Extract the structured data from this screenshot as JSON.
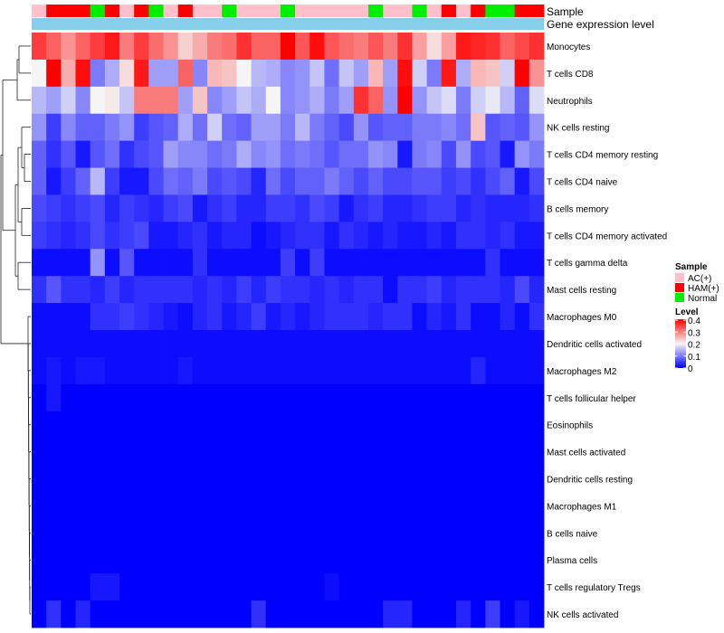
{
  "chart_data": {
    "type": "heatmap",
    "title": "",
    "annotation_tracks": [
      "Sample",
      "Gene expression level"
    ],
    "rows": [
      "Monocytes",
      "T cells CD8",
      "Neutrophils",
      "NK cells resting",
      "T cells CD4 memory resting",
      "T cells CD4 naive",
      "B cells memory",
      "T cells CD4 memory activated",
      "T cells gamma delta",
      "Mast cells resting",
      "Macrophages M0",
      "Dendritic cells activated",
      "Macrophages M2",
      "T cells follicular helper",
      "Eosinophils",
      "Mast cells activated",
      "Dendritic cells resting",
      "Macrophages M1",
      "B cells naive",
      "Plasma cells",
      "T cells regulatory  Tregs",
      "NK cells activated"
    ],
    "sample_groups": [
      "AC(+)",
      "HAM(+)",
      "HAM(+)",
      "HAM(+)",
      "Normal",
      "HAM(+)",
      "AC(+)",
      "HAM(+)",
      "Normal",
      "AC(+)",
      "HAM(+)",
      "AC(+)",
      "AC(+)",
      "Normal",
      "AC(+)",
      "AC(+)",
      "AC(+)",
      "Normal",
      "AC(+)",
      "AC(+)",
      "AC(+)",
      "AC(+)",
      "AC(+)",
      "Normal",
      "AC(+)",
      "AC(+)",
      "Normal",
      "AC(+)",
      "HAM(+)",
      "AC(+)",
      "HAM(+)",
      "Normal",
      "Normal",
      "HAM(+)",
      "HAM(+)"
    ],
    "values": [
      [
        0.35,
        0.32,
        0.28,
        0.32,
        0.35,
        0.38,
        0.3,
        0.35,
        0.31,
        0.28,
        0.23,
        0.26,
        0.3,
        0.31,
        0.36,
        0.32,
        0.32,
        0.4,
        0.33,
        0.39,
        0.33,
        0.31,
        0.3,
        0.33,
        0.3,
        0.36,
        0.27,
        0.22,
        0.27,
        0.38,
        0.37,
        0.36,
        0.32,
        0.34,
        0.36
      ],
      [
        0.2,
        0.4,
        0.26,
        0.39,
        0.1,
        0.14,
        0.22,
        0.38,
        0.13,
        0.13,
        0.32,
        0.11,
        0.25,
        0.24,
        0.2,
        0.15,
        0.14,
        0.11,
        0.12,
        0.16,
        0.09,
        0.16,
        0.13,
        0.25,
        0.13,
        0.39,
        0.17,
        0.1,
        0.38,
        0.14,
        0.25,
        0.24,
        0.17,
        0.4,
        0.28
      ],
      [
        0.15,
        0.13,
        0.17,
        0.11,
        0.2,
        0.21,
        0.16,
        0.3,
        0.3,
        0.3,
        0.13,
        0.24,
        0.11,
        0.13,
        0.16,
        0.14,
        0.2,
        0.11,
        0.12,
        0.14,
        0.1,
        0.13,
        0.36,
        0.32,
        0.12,
        0.4,
        0.12,
        0.16,
        0.18,
        0.1,
        0.17,
        0.19,
        0.15,
        0.08,
        0.18
      ],
      [
        0.12,
        0.05,
        0.11,
        0.08,
        0.08,
        0.1,
        0.12,
        0.05,
        0.07,
        0.08,
        0.14,
        0.09,
        0.17,
        0.09,
        0.08,
        0.13,
        0.13,
        0.1,
        0.15,
        0.1,
        0.08,
        0.06,
        0.12,
        0.07,
        0.08,
        0.08,
        0.1,
        0.1,
        0.11,
        0.09,
        0.24,
        0.07,
        0.08,
        0.07,
        0.12
      ],
      [
        0.08,
        0.04,
        0.07,
        0.02,
        0.07,
        0.09,
        0.04,
        0.06,
        0.07,
        0.13,
        0.11,
        0.11,
        0.09,
        0.1,
        0.14,
        0.11,
        0.12,
        0.09,
        0.1,
        0.09,
        0.07,
        0.09,
        0.09,
        0.12,
        0.11,
        0.02,
        0.1,
        0.11,
        0.06,
        0.12,
        0.06,
        0.07,
        0.02,
        0.12,
        0.1
      ],
      [
        0.08,
        0.02,
        0.05,
        0.08,
        0.15,
        0.05,
        0.02,
        0.02,
        0.06,
        0.09,
        0.08,
        0.1,
        0.06,
        0.07,
        0.06,
        0.03,
        0.09,
        0.06,
        0.08,
        0.08,
        0.1,
        0.08,
        0.06,
        0.08,
        0.06,
        0.06,
        0.07,
        0.07,
        0.05,
        0.06,
        0.04,
        0.06,
        0.08,
        0.02,
        0.06
      ],
      [
        0.06,
        0.05,
        0.04,
        0.05,
        0.06,
        0.03,
        0.05,
        0.04,
        0.03,
        0.05,
        0.06,
        0.02,
        0.04,
        0.05,
        0.03,
        0.03,
        0.05,
        0.05,
        0.04,
        0.06,
        0.05,
        0.02,
        0.04,
        0.05,
        0.03,
        0.03,
        0.04,
        0.05,
        0.05,
        0.03,
        0.04,
        0.03,
        0.03,
        0.03,
        0.04
      ],
      [
        0.05,
        0.04,
        0.03,
        0.04,
        0.06,
        0.04,
        0.05,
        0.06,
        0.02,
        0.02,
        0.03,
        0.04,
        0.02,
        0.03,
        0.03,
        0.01,
        0.02,
        0.03,
        0.04,
        0.04,
        0.02,
        0.04,
        0.03,
        0.02,
        0.03,
        0.02,
        0.02,
        0.03,
        0.02,
        0.04,
        0.04,
        0.03,
        0.04,
        0.02,
        0.02
      ],
      [
        0.01,
        0.01,
        0.01,
        0.01,
        0.12,
        0.01,
        0.07,
        0.01,
        0.01,
        0.01,
        0.01,
        0.04,
        0.01,
        0.01,
        0.01,
        0.01,
        0.01,
        0.05,
        0.01,
        0.05,
        0.01,
        0.01,
        0.01,
        0.01,
        0.01,
        0.01,
        0.01,
        0.01,
        0.01,
        0.01,
        0.01,
        0.04,
        0.01,
        0.01,
        0.01
      ],
      [
        0.04,
        0.07,
        0.04,
        0.04,
        0.03,
        0.05,
        0.03,
        0.04,
        0.04,
        0.04,
        0.04,
        0.03,
        0.04,
        0.03,
        0.05,
        0.03,
        0.05,
        0.04,
        0.04,
        0.03,
        0.04,
        0.03,
        0.04,
        0.04,
        0.01,
        0.04,
        0.04,
        0.05,
        0.03,
        0.04,
        0.04,
        0.04,
        0.03,
        0.06,
        0.03
      ],
      [
        0.01,
        0.01,
        0.01,
        0.01,
        0.04,
        0.04,
        0.05,
        0.04,
        0.03,
        0.02,
        0.01,
        0.03,
        0.04,
        0.02,
        0.03,
        0.05,
        0.02,
        0.03,
        0.02,
        0.03,
        0.04,
        0.04,
        0.04,
        0.03,
        0.04,
        0.04,
        0.01,
        0.03,
        0.02,
        0.04,
        0.01,
        0.01,
        0.03,
        0.01,
        0.04
      ],
      [
        0.01,
        0.01,
        0.01,
        0.01,
        0.01,
        0.01,
        0.01,
        0.01,
        0.01,
        0.01,
        0.01,
        0.01,
        0.01,
        0.01,
        0.01,
        0.01,
        0.01,
        0.01,
        0.01,
        0.01,
        0.01,
        0.01,
        0.01,
        0.01,
        0.01,
        0.01,
        0.01,
        0.01,
        0.01,
        0.01,
        0.01,
        0.01,
        0.01,
        0.01,
        0.01
      ],
      [
        0.01,
        0.02,
        0.01,
        0.02,
        0.02,
        0.01,
        0.01,
        0.01,
        0.01,
        0.01,
        0.02,
        0.01,
        0.01,
        0.01,
        0.01,
        0.01,
        0.01,
        0.01,
        0.01,
        0.01,
        0.01,
        0.01,
        0.01,
        0.01,
        0.01,
        0.01,
        0.01,
        0.01,
        0.01,
        0.01,
        0.03,
        0.01,
        0.01,
        0.01,
        0.01
      ],
      [
        0.0,
        0.02,
        0.0,
        0.0,
        0.0,
        0.0,
        0.0,
        0.0,
        0.0,
        0.0,
        0.0,
        0.0,
        0.0,
        0.0,
        0.0,
        0.0,
        0.0,
        0.0,
        0.0,
        0.0,
        0.0,
        0.0,
        0.0,
        0.0,
        0.0,
        0.0,
        0.0,
        0.0,
        0.0,
        0.0,
        0.0,
        0.0,
        0.0,
        0.0,
        0.0
      ],
      [
        0.0,
        0.0,
        0.0,
        0.0,
        0.0,
        0.0,
        0.0,
        0.0,
        0.0,
        0.0,
        0.0,
        0.0,
        0.0,
        0.0,
        0.0,
        0.0,
        0.0,
        0.0,
        0.0,
        0.0,
        0.0,
        0.0,
        0.0,
        0.0,
        0.0,
        0.0,
        0.0,
        0.0,
        0.0,
        0.0,
        0.0,
        0.0,
        0.0,
        0.0,
        0.0
      ],
      [
        0.0,
        0.0,
        0.0,
        0.0,
        0.0,
        0.0,
        0.0,
        0.0,
        0.0,
        0.0,
        0.0,
        0.0,
        0.0,
        0.0,
        0.0,
        0.0,
        0.0,
        0.0,
        0.0,
        0.0,
        0.0,
        0.0,
        0.0,
        0.0,
        0.0,
        0.0,
        0.0,
        0.0,
        0.0,
        0.0,
        0.0,
        0.0,
        0.0,
        0.0,
        0.0
      ],
      [
        0.0,
        0.0,
        0.0,
        0.0,
        0.0,
        0.0,
        0.0,
        0.0,
        0.0,
        0.0,
        0.0,
        0.0,
        0.0,
        0.0,
        0.0,
        0.0,
        0.0,
        0.0,
        0.0,
        0.0,
        0.0,
        0.0,
        0.0,
        0.0,
        0.0,
        0.0,
        0.0,
        0.0,
        0.0,
        0.0,
        0.0,
        0.0,
        0.0,
        0.0,
        0.0
      ],
      [
        0.0,
        0.0,
        0.0,
        0.0,
        0.0,
        0.0,
        0.0,
        0.0,
        0.0,
        0.0,
        0.0,
        0.0,
        0.0,
        0.0,
        0.0,
        0.0,
        0.0,
        0.0,
        0.0,
        0.0,
        0.0,
        0.0,
        0.0,
        0.0,
        0.0,
        0.0,
        0.0,
        0.0,
        0.0,
        0.0,
        0.0,
        0.0,
        0.0,
        0.0,
        0.0
      ],
      [
        0.0,
        0.0,
        0.0,
        0.0,
        0.0,
        0.0,
        0.0,
        0.0,
        0.0,
        0.0,
        0.0,
        0.0,
        0.0,
        0.0,
        0.0,
        0.0,
        0.0,
        0.0,
        0.0,
        0.0,
        0.0,
        0.0,
        0.0,
        0.0,
        0.0,
        0.0,
        0.0,
        0.0,
        0.0,
        0.0,
        0.0,
        0.0,
        0.0,
        0.0,
        0.0
      ],
      [
        0.0,
        0.0,
        0.0,
        0.0,
        0.0,
        0.0,
        0.0,
        0.0,
        0.0,
        0.0,
        0.0,
        0.0,
        0.0,
        0.0,
        0.0,
        0.0,
        0.0,
        0.0,
        0.0,
        0.0,
        0.0,
        0.0,
        0.0,
        0.0,
        0.0,
        0.0,
        0.0,
        0.0,
        0.0,
        0.0,
        0.0,
        0.0,
        0.0,
        0.0,
        0.0
      ],
      [
        0.0,
        0.0,
        0.0,
        0.0,
        0.02,
        0.02,
        0.0,
        0.0,
        0.0,
        0.0,
        0.0,
        0.0,
        0.0,
        0.0,
        0.0,
        0.0,
        0.0,
        0.0,
        0.0,
        0.0,
        0.01,
        0.0,
        0.0,
        0.0,
        0.0,
        0.0,
        0.0,
        0.0,
        0.0,
        0.0,
        0.0,
        0.0,
        0.0,
        0.0,
        0.0
      ],
      [
        0.0,
        0.04,
        0.0,
        0.03,
        0.0,
        0.0,
        0.0,
        0.0,
        0.0,
        0.0,
        0.0,
        0.0,
        0.0,
        0.0,
        0.0,
        0.04,
        0.0,
        0.0,
        0.0,
        0.0,
        0.0,
        0.0,
        0.0,
        0.0,
        0.03,
        0.03,
        0.0,
        0.0,
        0.0,
        0.03,
        0.0,
        0.05,
        0.0,
        0.02,
        0.0
      ]
    ],
    "legend": {
      "sample_title": "Sample",
      "sample_entries": [
        {
          "label": "AC(+)",
          "color": "#FFC0CB"
        },
        {
          "label": "HAM(+)",
          "color": "#FF0000"
        },
        {
          "label": "Normal",
          "color": "#00EE00"
        }
      ],
      "level_title": "Level",
      "level_ticks": [
        "0.4",
        "0.3",
        "0.2",
        "0.1",
        "0"
      ],
      "level_range": [
        0,
        0.4
      ]
    },
    "colors": {
      "low": "#0000FF",
      "mid": "#F5F5F5",
      "high": "#FF0000",
      "mid_value": 0.2,
      "expression_track": "#87CEEB"
    }
  }
}
